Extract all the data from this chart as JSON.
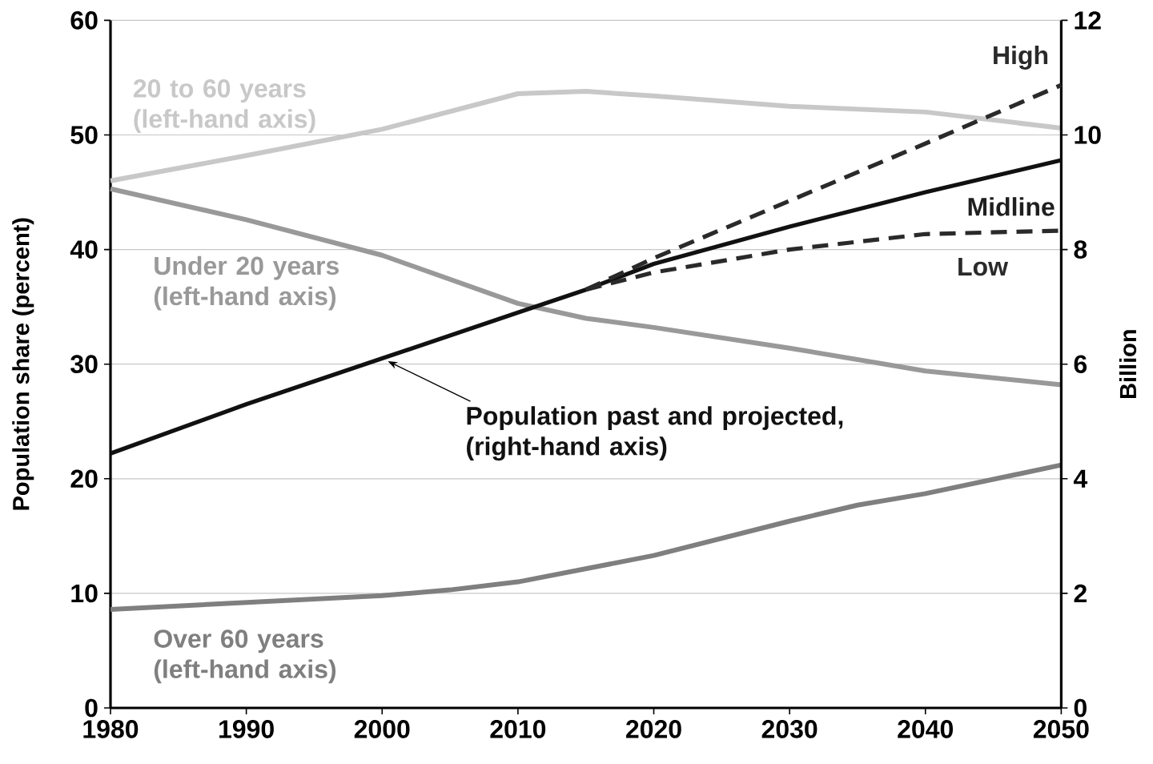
{
  "chart_data": {
    "type": "line",
    "xlim": [
      1980,
      2050
    ],
    "xticks": [
      1980,
      1990,
      2000,
      2010,
      2020,
      2030,
      2040,
      2050
    ],
    "ylim": [
      0,
      60
    ],
    "yticks": [
      0,
      10,
      20,
      30,
      40,
      50,
      60
    ],
    "y2lim": [
      0,
      12
    ],
    "y2ticks": [
      0,
      2,
      4,
      6,
      8,
      10,
      12
    ],
    "ylabel": "Population share (percent)",
    "y2label": "Billion",
    "grid": "y",
    "series": [
      {
        "name": "20 to 60 years (left-hand axis)",
        "color": "#c8c8c8",
        "line_style": "solid",
        "x": [
          1980,
          1990,
          2000,
          2010,
          2015,
          2020,
          2030,
          2040,
          2050
        ],
        "values": [
          46,
          48.2,
          50.5,
          53.6,
          53.8,
          53.4,
          52.5,
          52.0,
          50.6
        ]
      },
      {
        "name": "Under 20 years (left-hand axis)",
        "color": "#999999",
        "line_style": "solid",
        "x": [
          1980,
          1990,
          2000,
          2010,
          2015,
          2020,
          2030,
          2040,
          2050
        ],
        "values": [
          45.3,
          42.6,
          39.5,
          35.3,
          34,
          33.2,
          31.4,
          29.4,
          28.2
        ]
      },
      {
        "name": "Over 60 years (left-hand axis)",
        "color": "#7f7f7f",
        "line_style": "solid",
        "x": [
          1980,
          1990,
          2000,
          2005,
          2010,
          2020,
          2030,
          2035,
          2040,
          2050
        ],
        "values": [
          8.6,
          9.2,
          9.8,
          10.3,
          11.0,
          13.3,
          16.3,
          17.7,
          18.7,
          21.2
        ]
      },
      {
        "name": "Population past and projected, (right-hand axis)",
        "color": "#111111",
        "line_style": "solid",
        "axis": "y2",
        "x": [
          1980,
          1990,
          2000,
          2010,
          2015,
          2020,
          2030,
          2040,
          2050
        ],
        "values": [
          4.44,
          5.3,
          6.1,
          6.9,
          7.3,
          7.75,
          8.4,
          9.0,
          9.56
        ]
      },
      {
        "name": "High",
        "color": "#2a2a2a",
        "line_style": "dashed",
        "axis": "y2",
        "x": [
          2015,
          2020,
          2030,
          2040,
          2050
        ],
        "values": [
          7.3,
          7.85,
          8.85,
          9.85,
          10.87
        ]
      },
      {
        "name": "Low",
        "color": "#2a2a2a",
        "line_style": "dashed",
        "axis": "y2",
        "x": [
          2015,
          2020,
          2030,
          2040,
          2050
        ],
        "values": [
          7.3,
          7.6,
          8.0,
          8.27,
          8.33
        ]
      }
    ],
    "annotations": [
      "Midline"
    ]
  }
}
